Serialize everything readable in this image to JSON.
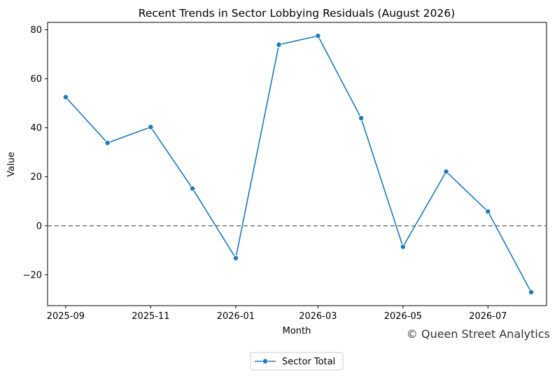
{
  "chart_data": {
    "type": "line",
    "title": "Recent Trends in Sector Lobbying Residuals (August 2026)",
    "xlabel": "Month",
    "ylabel": "Value",
    "x": [
      "2025-09",
      "2025-10",
      "2025-11",
      "2025-12",
      "2026-01",
      "2026-02",
      "2026-03",
      "2026-04",
      "2026-05",
      "2026-06",
      "2026-07",
      "2026-08"
    ],
    "series": [
      {
        "name": "Sector Total",
        "color": "#1f77b4",
        "marker": "circle",
        "values": [
          52.5,
          33.8,
          40.3,
          15.2,
          -13.2,
          73.9,
          77.5,
          43.9,
          -8.6,
          22.1,
          5.8,
          -27.1
        ]
      }
    ],
    "x_ticks": [
      "2025-09",
      "2025-11",
      "2026-01",
      "2026-03",
      "2026-05",
      "2026-07"
    ],
    "y_ticks": [
      -20,
      0,
      20,
      40,
      60,
      80
    ],
    "ylim": [
      -32.6,
      83.0
    ],
    "xlim": [
      "2025-08-19",
      "2026-08-12"
    ],
    "reference_line": {
      "y": 0,
      "style": "dashed",
      "color": "#808080"
    },
    "grid": false,
    "legend_position": "bottom-center",
    "watermark": "© Queen Street Analytics"
  }
}
